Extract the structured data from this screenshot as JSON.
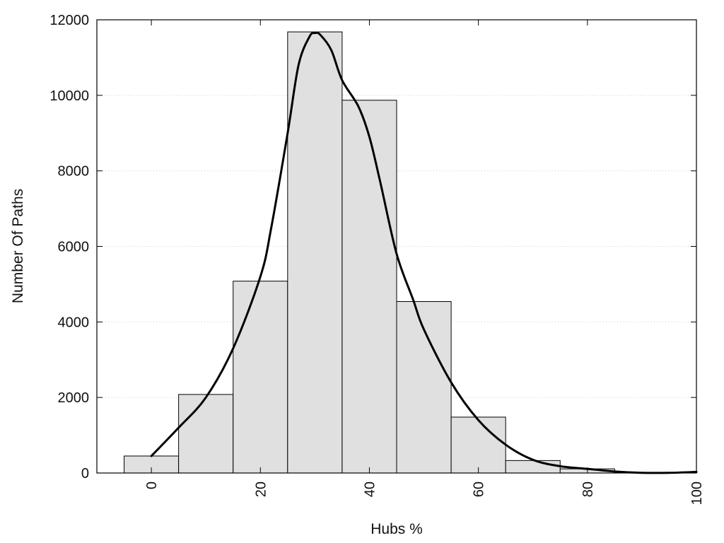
{
  "chart_data": {
    "type": "bar",
    "title": "",
    "xlabel": "Hubs %",
    "ylabel": "Number Of Paths",
    "xlim": [
      -10,
      100
    ],
    "ylim": [
      0,
      12000
    ],
    "x_ticks": [
      0,
      20,
      40,
      60,
      80,
      100
    ],
    "y_ticks": [
      0,
      2000,
      4000,
      6000,
      8000,
      10000,
      12000
    ],
    "grid": "horizontal dotted",
    "legend": "none",
    "bin_width": 10,
    "bars": [
      {
        "x": 0,
        "value": 450
      },
      {
        "x": 10,
        "value": 2080
      },
      {
        "x": 20,
        "value": 5080
      },
      {
        "x": 30,
        "value": 11680
      },
      {
        "x": 40,
        "value": 9870
      },
      {
        "x": 50,
        "value": 4540
      },
      {
        "x": 60,
        "value": 1480
      },
      {
        "x": 70,
        "value": 330
      },
      {
        "x": 80,
        "value": 110
      }
    ],
    "curve": {
      "x": [
        0,
        5,
        10,
        15,
        20,
        22,
        25,
        27,
        29,
        30,
        31,
        33,
        35,
        38,
        40,
        42,
        45,
        48,
        50,
        55,
        60,
        65,
        70,
        75,
        80,
        85,
        90,
        95,
        100
      ],
      "y": [
        450,
        1200,
        2000,
        3300,
        5200,
        6500,
        9000,
        10800,
        11550,
        11650,
        11600,
        11200,
        10400,
        9700,
        8900,
        7700,
        5800,
        4600,
        3800,
        2400,
        1400,
        750,
        350,
        180,
        110,
        40,
        5,
        5,
        30
      ]
    },
    "colors": {
      "bar_fill": "#e0e0e0",
      "bar_stroke": "#000000",
      "curve": "#000000",
      "grid": "#cccccc"
    }
  }
}
